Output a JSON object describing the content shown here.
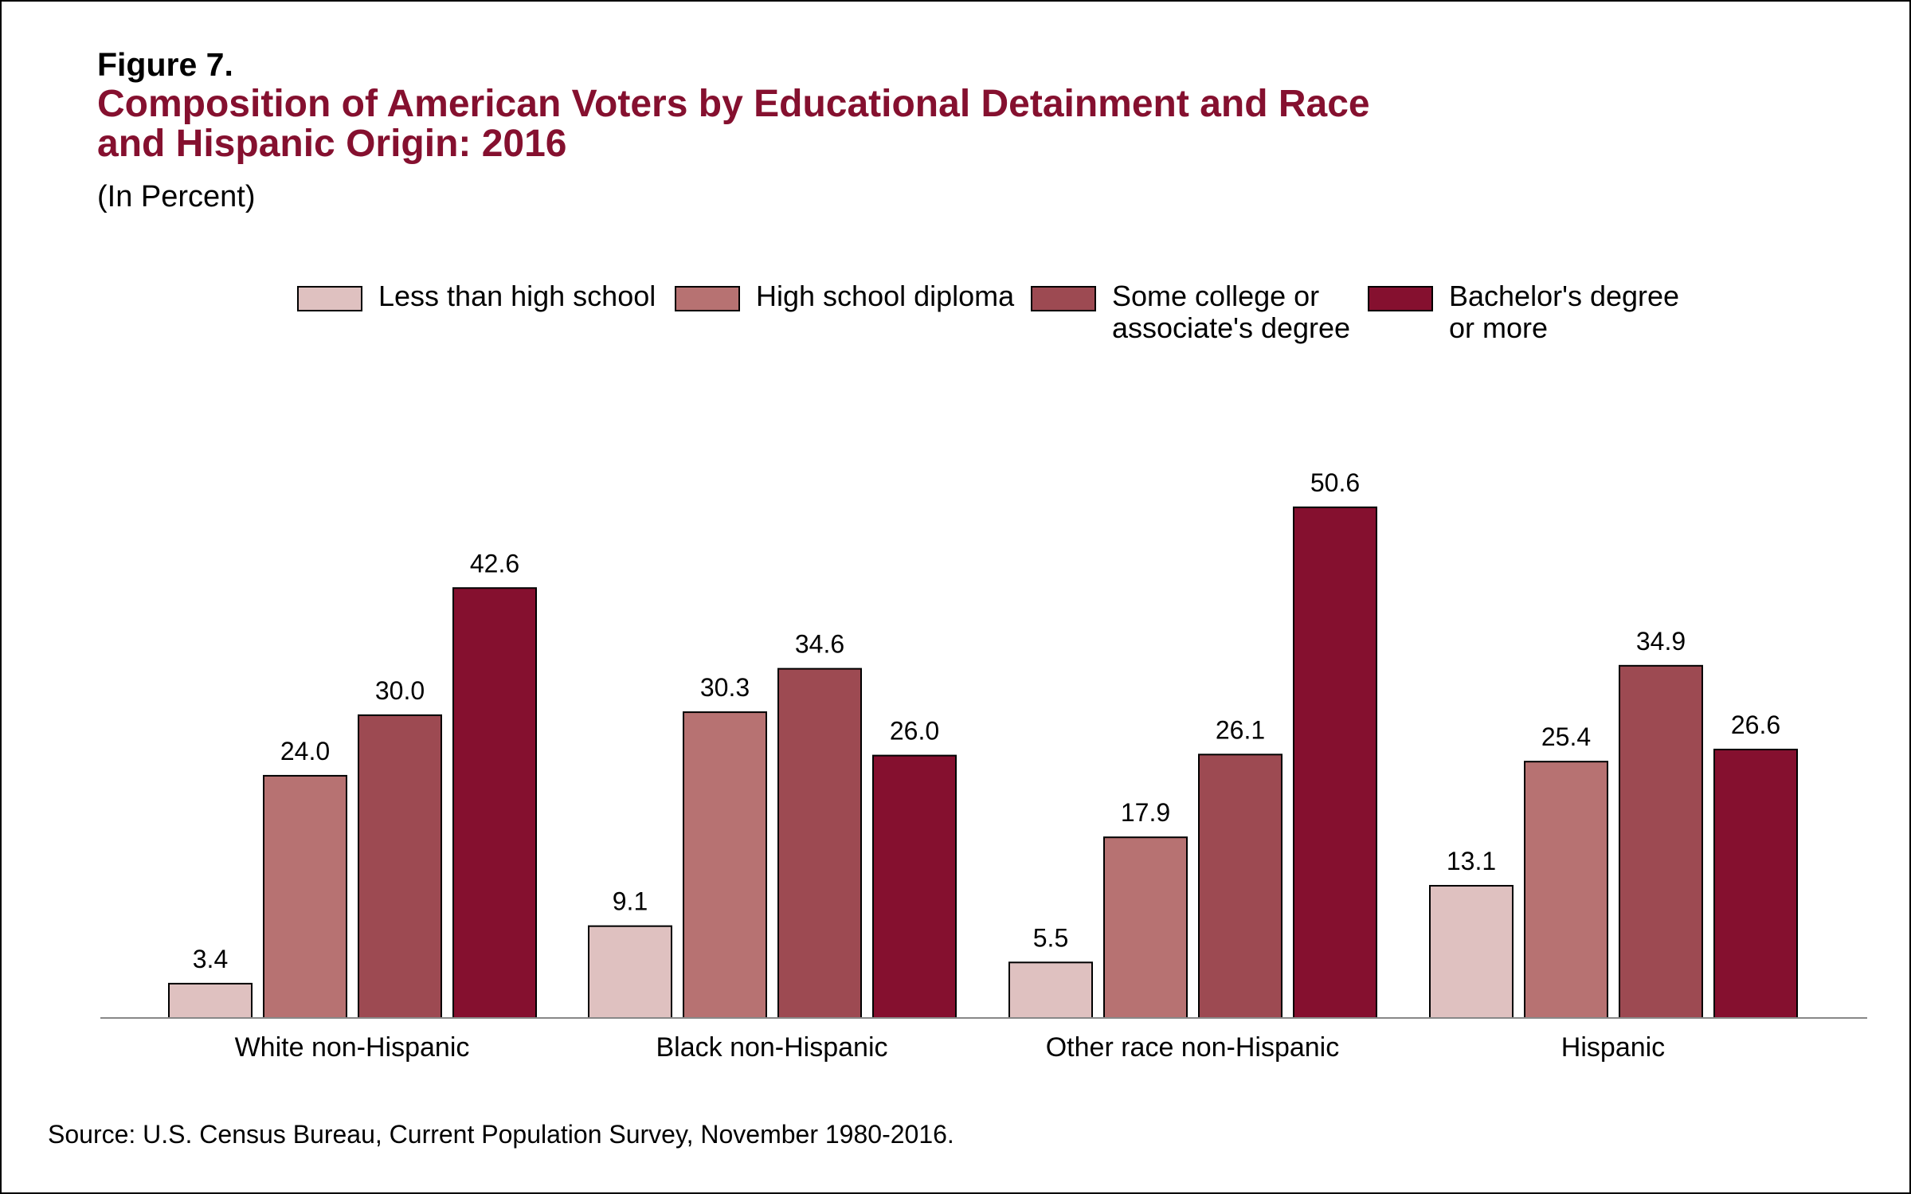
{
  "figure_label": "Figure 7.",
  "title_lines": [
    "Composition of American Voters by Educational Detainment and Race",
    "and Hispanic Origin: 2016"
  ],
  "subtitle": "(In Percent)",
  "source": "Source: U.S. Census Bureau, Current Population Survey, November 1980-2016.",
  "colors": {
    "title": "#85102f",
    "axis": "#888888",
    "bar_stroke": "#000000",
    "series": [
      "#dfc1c0",
      "#b77272",
      "#9d4a52",
      "#85102f"
    ]
  },
  "legend": [
    {
      "lines": [
        "Less than high school"
      ]
    },
    {
      "lines": [
        "High school diploma"
      ]
    },
    {
      "lines": [
        "Some college or",
        "associate's degree"
      ]
    },
    {
      "lines": [
        "Bachelor's degree",
        "or more"
      ]
    }
  ],
  "chart_data": {
    "type": "bar",
    "title": "Composition of American Voters by Educational Detainment and Race and Hispanic Origin: 2016",
    "subtitle": "(In Percent)",
    "xlabel": "",
    "ylabel": "",
    "ylim": [
      0,
      56
    ],
    "grid": false,
    "legend_position": "top",
    "categories": [
      "White non-Hispanic",
      "Black non-Hispanic",
      "Other race non-Hispanic",
      "Hispanic"
    ],
    "series": [
      {
        "name": "Less than high school",
        "values": [
          3.4,
          9.1,
          5.5,
          13.1
        ],
        "labels": [
          "3.4",
          "9.1",
          "5.5",
          "13.1"
        ]
      },
      {
        "name": "High school diploma",
        "values": [
          24.0,
          30.3,
          17.9,
          25.4
        ],
        "labels": [
          "24.0",
          "30.3",
          "17.9",
          "25.4"
        ]
      },
      {
        "name": "Some college or associate's degree",
        "values": [
          30.0,
          34.6,
          26.1,
          34.9
        ],
        "labels": [
          "30.0",
          "34.6",
          "26.1",
          "34.9"
        ]
      },
      {
        "name": "Bachelor's degree or more",
        "values": [
          42.6,
          26.0,
          50.6,
          26.6
        ],
        "labels": [
          "42.6",
          "26.0",
          "50.6",
          "26.6"
        ]
      }
    ]
  }
}
